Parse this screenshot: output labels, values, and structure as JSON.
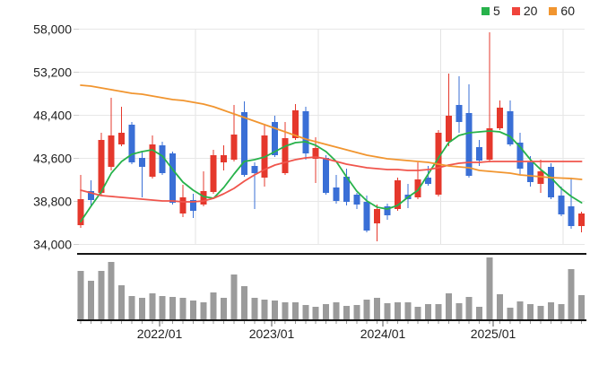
{
  "legend": {
    "items": [
      {
        "label": "5",
        "color": "#27b24b"
      },
      {
        "label": "20",
        "color": "#f0443c"
      },
      {
        "label": "60",
        "color": "#f1952f"
      }
    ]
  },
  "y_axis": {
    "tick_labels": [
      "58,000",
      "53,200",
      "48,400",
      "43,600",
      "38,800",
      "34,000"
    ],
    "tick_values": [
      58000,
      53200,
      48400,
      43600,
      38800,
      34000
    ]
  },
  "x_axis": {
    "tick_labels": [
      "2022/01",
      "2023/01",
      "2024/01",
      "2025/01"
    ]
  },
  "colors": {
    "background": "#ffffff",
    "up_candle": "#e5382c",
    "down_candle": "#3a6fd6",
    "ma5_line": "#27b24b",
    "ma20_line": "#f0554c",
    "ma60_line": "#f1952f",
    "volume_bar": "#9b9b9b",
    "gridline": "#e7e7e7",
    "axis_text": "#1f1f1f",
    "axis_dark_line": "#151515",
    "y_tick_dash": "#cfcfcf",
    "minor_tick": "#9a9a9a",
    "year_tick": "#555555"
  },
  "chart_data": {
    "type": "candlestick",
    "title": "",
    "xlabel": "",
    "ylabel": "",
    "y_range": [
      34000,
      58000
    ],
    "grid": true,
    "legend_position": "top-right",
    "x_tick_labels": [
      "2022/01",
      "2023/01",
      "2024/01",
      "2025/01"
    ],
    "candles": {
      "open": [
        36100,
        39900,
        39700,
        42600,
        45100,
        47300,
        43600,
        41500,
        45000,
        44100,
        37400,
        38900,
        38400,
        39800,
        43100,
        43400,
        48700,
        42700,
        41400,
        47600,
        41900,
        45800,
        48800,
        43500,
        43600,
        40300,
        41500,
        39500,
        38700,
        36300,
        38200,
        37900,
        39500,
        39200,
        41400,
        39500,
        45400,
        49500,
        48600,
        44800,
        43400,
        46900,
        48800,
        45300,
        43100,
        40700,
        42600,
        39400,
        38200,
        36000
      ],
      "high": [
        41700,
        41100,
        46400,
        50300,
        49300,
        47600,
        44300,
        46100,
        45400,
        44300,
        40600,
        39600,
        42100,
        44500,
        45000,
        49500,
        49900,
        43100,
        47300,
        48300,
        47600,
        49600,
        49300,
        45900,
        43900,
        41700,
        42400,
        39700,
        39400,
        38400,
        38500,
        41400,
        40700,
        43100,
        42700,
        46700,
        53000,
        52700,
        51800,
        45600,
        57600,
        50000,
        50000,
        46400,
        43800,
        43400,
        43000,
        40400,
        41400,
        37600
      ],
      "low": [
        35800,
        38300,
        39400,
        42200,
        44900,
        42900,
        39200,
        41300,
        41700,
        38400,
        37000,
        36900,
        38200,
        39600,
        42200,
        43200,
        41500,
        37900,
        40400,
        43700,
        41700,
        45600,
        43400,
        40800,
        39500,
        38500,
        38300,
        37900,
        35300,
        34300,
        36700,
        37700,
        38000,
        39000,
        40500,
        39300,
        44900,
        46400,
        41400,
        42700,
        43100,
        46700,
        44900,
        41700,
        40400,
        39700,
        39000,
        37100,
        35700,
        35300
      ],
      "close": [
        39000,
        38900,
        45600,
        46100,
        46400,
        43100,
        42600,
        45100,
        41900,
        38600,
        39200,
        37700,
        39900,
        43900,
        43900,
        46200,
        41700,
        41900,
        46100,
        43900,
        45800,
        48900,
        44100,
        44700,
        39700,
        38800,
        38700,
        38400,
        35500,
        37900,
        37200,
        41100,
        39000,
        41200,
        40700,
        46400,
        48300,
        47600,
        41600,
        43300,
        46900,
        49200,
        45100,
        42400,
        40900,
        42100,
        39200,
        37300,
        36000,
        37400
      ]
    },
    "moving_averages": {
      "ma5": [
        36500,
        38200,
        39800,
        41900,
        43200,
        44000,
        44300,
        44500,
        43800,
        42300,
        40900,
        40000,
        39300,
        39100,
        40300,
        41800,
        43200,
        43400,
        43700,
        44300,
        44900,
        45300,
        45400,
        45000,
        44300,
        43200,
        41500,
        39900,
        38800,
        38100,
        37900,
        38300,
        39200,
        40000,
        41800,
        43600,
        45300,
        46100,
        46400,
        46500,
        46600,
        46500,
        46000,
        44800,
        43400,
        42300,
        41400,
        40200,
        39300,
        38600
      ],
      "ma20": [
        40000,
        39700,
        39400,
        39300,
        39200,
        39100,
        39000,
        38900,
        38800,
        38800,
        38700,
        38700,
        38800,
        39100,
        39600,
        40200,
        41000,
        41700,
        42300,
        42800,
        43100,
        43400,
        43600,
        43700,
        43500,
        43200,
        42900,
        42700,
        42500,
        42400,
        42300,
        42300,
        42200,
        42200,
        42300,
        42500,
        42800,
        43000,
        43100,
        43100,
        43200,
        43200,
        43200,
        43200,
        43200,
        43200,
        43200,
        43200,
        43200,
        43200
      ],
      "ma60": [
        51700,
        51600,
        51400,
        51200,
        51000,
        50800,
        50700,
        50500,
        50300,
        50100,
        50000,
        49800,
        49600,
        49300,
        48900,
        48500,
        48100,
        47700,
        47300,
        46900,
        46500,
        46100,
        45700,
        45400,
        45100,
        44800,
        44500,
        44200,
        43900,
        43700,
        43500,
        43400,
        43300,
        43200,
        43100,
        42900,
        42700,
        42600,
        42500,
        42200,
        42100,
        42000,
        41900,
        41700,
        41600,
        41500,
        41400,
        41350,
        41300,
        41200
      ]
    },
    "volume_relative": [
      54,
      43,
      54,
      64,
      38,
      26,
      24,
      29,
      26,
      25,
      24,
      21,
      19,
      30,
      24,
      50,
      37,
      24,
      22,
      21,
      19,
      19,
      16,
      14,
      17,
      19,
      15,
      16,
      22,
      24,
      18,
      19,
      19,
      14,
      17,
      17,
      29,
      18,
      25,
      14,
      69,
      28,
      13,
      20,
      17,
      15,
      19,
      17,
      56,
      27
    ]
  }
}
